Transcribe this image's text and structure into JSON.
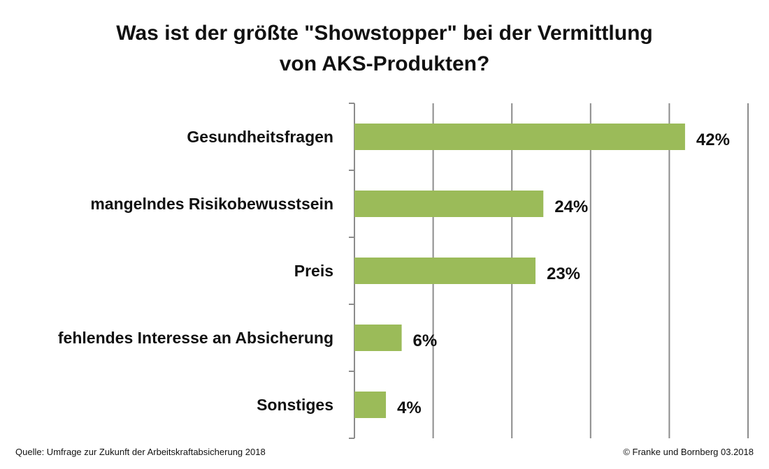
{
  "title_line1": "Was ist der größte \"Showstopper\" bei der Vermittlung",
  "title_line2": "von AKS-Produkten?",
  "source": "Quelle: Umfrage zur Zukunft der Arbeitskraftabsicherung 2018",
  "copyright": "© Franke und Bornberg 03.2018",
  "chart_data": {
    "type": "bar",
    "orientation": "horizontal",
    "categories": [
      "Gesundheitsfragen",
      "mangelndes Risikobewusstsein",
      "Preis",
      "fehlendes Interesse an Absicherung",
      "Sonstiges"
    ],
    "values": [
      42,
      24,
      23,
      6,
      4
    ],
    "value_labels": [
      "42%",
      "24%",
      "23%",
      "6%",
      "4%"
    ],
    "xlim": [
      0,
      50
    ],
    "grid": true,
    "bar_color": "#9BBB59"
  }
}
